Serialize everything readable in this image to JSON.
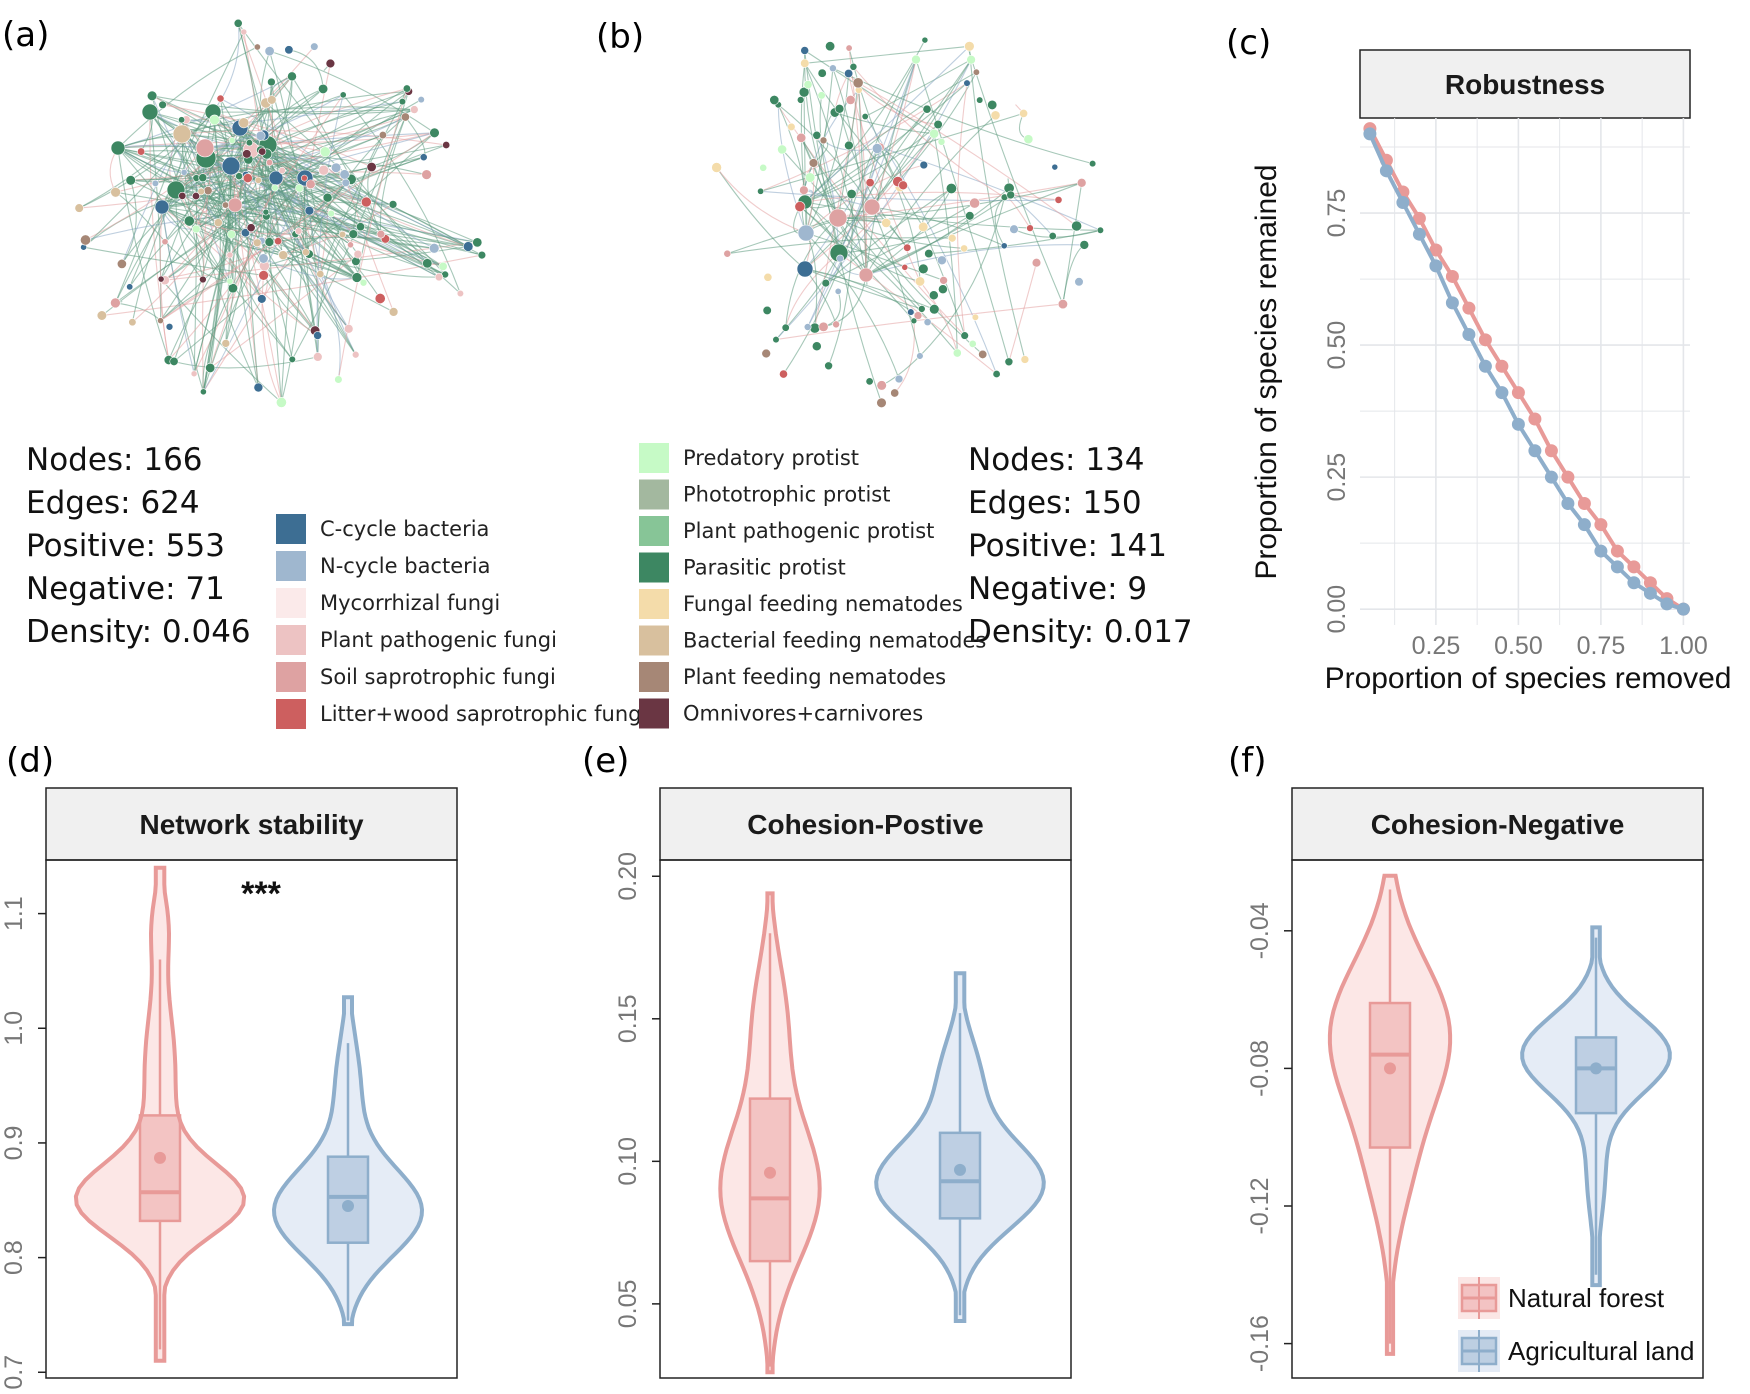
{
  "panels": {
    "a": {
      "label": "(a)",
      "stats": [
        "Nodes: 166",
        "Edges: 624",
        "Positive: 553",
        "Negative: 71",
        "Density: 0.046"
      ]
    },
    "b": {
      "label": "(b)",
      "stats": [
        "Nodes: 134",
        "Edges: 150",
        "Positive: 141",
        "Negative: 9",
        "Density: 0.017"
      ]
    },
    "c": {
      "label": "(c)"
    },
    "d": {
      "label": "(d)"
    },
    "e": {
      "label": "(e)"
    },
    "f": {
      "label": "(f)"
    }
  },
  "legend_left": [
    {
      "label": "C-cycle bacteria",
      "color": "#3d6e93"
    },
    {
      "label": "N-cycle bacteria",
      "color": "#9fb7cf"
    },
    {
      "label": "Mycorrhizal fungi",
      "color": "#fbeaea"
    },
    {
      "label": "Plant pathogenic fungi",
      "color": "#edc3c3"
    },
    {
      "label": "Soil saprotrophic fungi",
      "color": "#dea2a2"
    },
    {
      "label": "Litter+wood saprotrophic fungi",
      "color": "#cd5f5f"
    }
  ],
  "legend_right": [
    {
      "label": "Predatory protist",
      "color": "#c6fac6"
    },
    {
      "label": "Phototrophic protist",
      "color": "#a3b89f"
    },
    {
      "label": "Plant pathogenic protist",
      "color": "#87c597"
    },
    {
      "label": "Parasitic protist",
      "color": "#3d8762"
    },
    {
      "label": "Fungal feeding nematodes",
      "color": "#f4dcaa"
    },
    {
      "label": "Bacterial feeding nematodes",
      "color": "#d8c09e"
    },
    {
      "label": "Plant feeding nematodes",
      "color": "#a68776"
    },
    {
      "label": "Omnivores+carnivores",
      "color": "#6a3643"
    }
  ],
  "colors": {
    "natural_forest": "#e89a98",
    "natural_forest_fill": "#fbe3e2",
    "agricultural_land": "#8eaecb",
    "agricultural_land_fill": "#e1e9f4",
    "strip_bg": "#f0f0f0",
    "grid": "#e4e6ea"
  },
  "chart_data": [
    {
      "type": "line",
      "title": "Robustness",
      "xlabel": "Proportion of species removed",
      "ylabel": "Proportion of species remained",
      "xlim": [
        0.02,
        1.02
      ],
      "ylim": [
        -0.03,
        0.93
      ],
      "xticks": [
        "0.25",
        "0.50",
        "0.75",
        "1.00"
      ],
      "yticks": [
        "0.00",
        "0.25",
        "0.50",
        "0.75"
      ],
      "series": [
        {
          "name": "Natural forest",
          "x": [
            0.05,
            0.1,
            0.15,
            0.2,
            0.25,
            0.3,
            0.35,
            0.4,
            0.45,
            0.5,
            0.55,
            0.6,
            0.65,
            0.7,
            0.75,
            0.8,
            0.85,
            0.9,
            0.95,
            1.0
          ],
          "y": [
            0.91,
            0.85,
            0.79,
            0.74,
            0.68,
            0.63,
            0.57,
            0.51,
            0.46,
            0.41,
            0.36,
            0.3,
            0.25,
            0.2,
            0.16,
            0.11,
            0.08,
            0.05,
            0.02,
            0.0
          ]
        },
        {
          "name": "Agricultural land",
          "x": [
            0.05,
            0.1,
            0.15,
            0.2,
            0.25,
            0.3,
            0.35,
            0.4,
            0.45,
            0.5,
            0.55,
            0.6,
            0.65,
            0.7,
            0.75,
            0.8,
            0.85,
            0.9,
            0.95,
            1.0
          ],
          "y": [
            0.9,
            0.83,
            0.77,
            0.71,
            0.65,
            0.58,
            0.52,
            0.46,
            0.41,
            0.35,
            0.3,
            0.25,
            0.2,
            0.16,
            0.11,
            0.08,
            0.05,
            0.03,
            0.01,
            0.0
          ]
        }
      ]
    },
    {
      "type": "violin",
      "title": "Network stability",
      "annotation": "***",
      "ylim": [
        0.695,
        1.145
      ],
      "yticks": [
        "0.7",
        "0.8",
        "0.9",
        "1.0",
        "1.1"
      ],
      "series": [
        {
          "name": "Natural forest",
          "min": 0.71,
          "max": 1.14,
          "q1": 0.832,
          "median": 0.857,
          "q3": 0.924,
          "whisker_low": 0.72,
          "whisker_high": 1.06,
          "mean": 0.887
        },
        {
          "name": "Agricultural land",
          "min": 0.742,
          "max": 1.027,
          "q1": 0.813,
          "median": 0.853,
          "q3": 0.888,
          "whisker_low": 0.745,
          "whisker_high": 0.987,
          "mean": 0.845
        }
      ]
    },
    {
      "type": "violin",
      "title": "Cohesion-Postive",
      "ylim": [
        0.024,
        0.205
      ],
      "yticks": [
        "0.05",
        "0.10",
        "0.15",
        "0.20"
      ],
      "series": [
        {
          "name": "Natural forest",
          "min": 0.026,
          "max": 0.194,
          "q1": 0.065,
          "median": 0.087,
          "q3": 0.122,
          "whisker_low": 0.028,
          "whisker_high": 0.18,
          "mean": 0.096
        },
        {
          "name": "Agricultural land",
          "min": 0.044,
          "max": 0.166,
          "q1": 0.08,
          "median": 0.093,
          "q3": 0.11,
          "whisker_low": 0.046,
          "whisker_high": 0.152,
          "mean": 0.097
        }
      ]
    },
    {
      "type": "violin",
      "title": "Cohesion-Negative",
      "ylim": [
        -0.17,
        -0.02
      ],
      "yticks": [
        "-0.04",
        "-0.08",
        "-0.12",
        "-0.16"
      ],
      "legend": [
        "Natural forest",
        "Agricultural land"
      ],
      "series": [
        {
          "name": "Natural forest",
          "min": -0.163,
          "max": -0.024,
          "q1": -0.103,
          "median": -0.076,
          "q3": -0.061,
          "whisker_low": -0.16,
          "whisker_high": -0.028,
          "mean": -0.08
        },
        {
          "name": "Agricultural land",
          "min": -0.143,
          "max": -0.039,
          "q1": -0.093,
          "median": -0.08,
          "q3": -0.071,
          "whisker_low": -0.14,
          "whisker_high": -0.042,
          "mean": -0.08
        }
      ]
    }
  ]
}
